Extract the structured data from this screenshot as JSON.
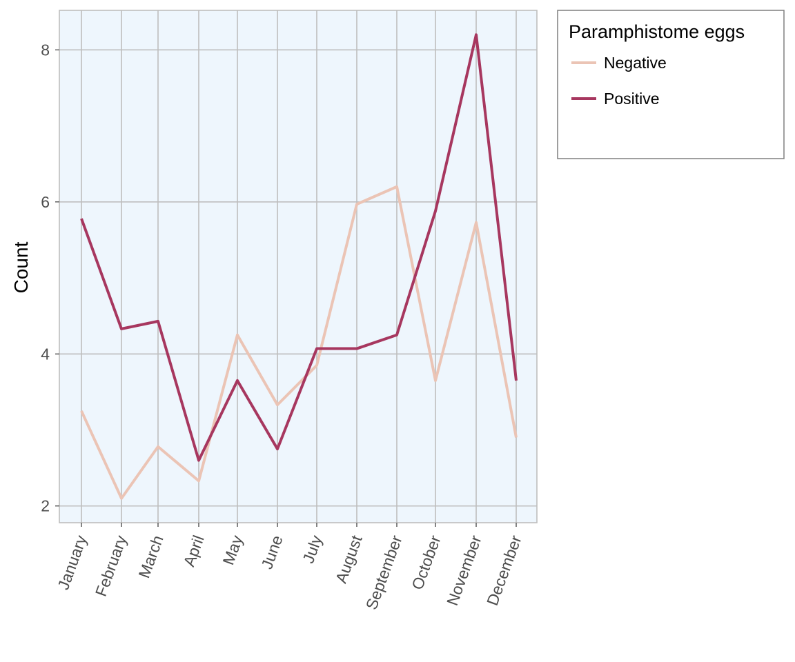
{
  "chart_data": {
    "type": "line",
    "title": "",
    "xlabel": "",
    "ylabel": "Count",
    "categories": [
      "January",
      "February",
      "March",
      "April",
      "May",
      "June",
      "July",
      "August",
      "September",
      "October",
      "November",
      "December"
    ],
    "series": [
      {
        "name": "Negative",
        "color": "#EBC4B5",
        "values": [
          3.25,
          2.1,
          2.78,
          2.33,
          4.25,
          3.33,
          3.85,
          5.97,
          6.2,
          3.65,
          5.73,
          2.9
        ]
      },
      {
        "name": "Positive",
        "color": "#A7375F",
        "values": [
          5.78,
          4.33,
          4.43,
          2.6,
          3.65,
          2.75,
          4.07,
          4.07,
          4.25,
          5.88,
          8.2,
          3.65
        ]
      }
    ],
    "ylim": [
      1.78,
      8.52
    ],
    "yticks": [
      2,
      4,
      6,
      8
    ],
    "grid": true,
    "panel_background": "#EEF6FD",
    "grid_color": "#BEBEBE",
    "legend": {
      "title": "Paramphistome eggs",
      "placement": "right-top"
    }
  }
}
